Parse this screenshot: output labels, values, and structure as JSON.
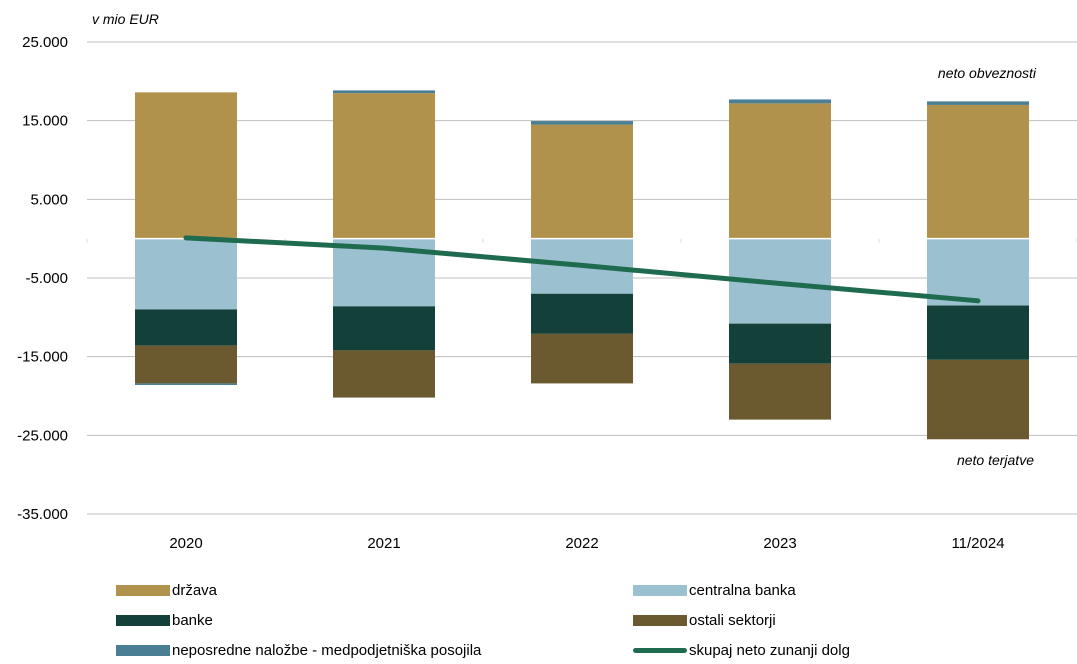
{
  "chart_data": {
    "type": "bar",
    "stacked": true,
    "unit_label": "v mio EUR",
    "categories": [
      "2020",
      "2021",
      "2022",
      "2023",
      "11/2024"
    ],
    "ylim": [
      -35000,
      25000
    ],
    "yticks": [
      25000,
      15000,
      5000,
      -5000,
      -15000,
      -25000,
      -35000
    ],
    "ytick_labels": [
      "25.000",
      "15.000",
      "5.000",
      "-5.000",
      "-15.000",
      "-25.000",
      "-35.000"
    ],
    "grid": true,
    "legend_position": "bottom",
    "series": [
      {
        "name": "država",
        "kind": "bar",
        "color": "#B0924D",
        "values": [
          18600,
          18500,
          14500,
          17200,
          17000
        ]
      },
      {
        "name": "centralna banka",
        "kind": "bar",
        "color": "#9BC1D0",
        "values": [
          -9000,
          -8600,
          -7000,
          -10800,
          -8500
        ]
      },
      {
        "name": "banke",
        "kind": "bar",
        "color": "#14403A",
        "values": [
          -4600,
          -5600,
          -5100,
          -5100,
          -6900
        ]
      },
      {
        "name": "ostali sektorji",
        "kind": "bar",
        "color": "#6B5A30",
        "values": [
          -4800,
          -6000,
          -6300,
          -7100,
          -10100
        ]
      },
      {
        "name": "neposredne naložbe - medpodjetniška posojila",
        "kind": "bar",
        "color": "#4A7F93",
        "values": [
          -200,
          350,
          450,
          500,
          450
        ]
      },
      {
        "name": "skupaj neto zunanji dolg",
        "kind": "line",
        "color": "#1F6B4F",
        "values": [
          100,
          -1200,
          -3400,
          -5700,
          -7900
        ]
      }
    ],
    "annotations": {
      "top": "neto obveznosti",
      "bottom": "neto terjatve"
    }
  }
}
